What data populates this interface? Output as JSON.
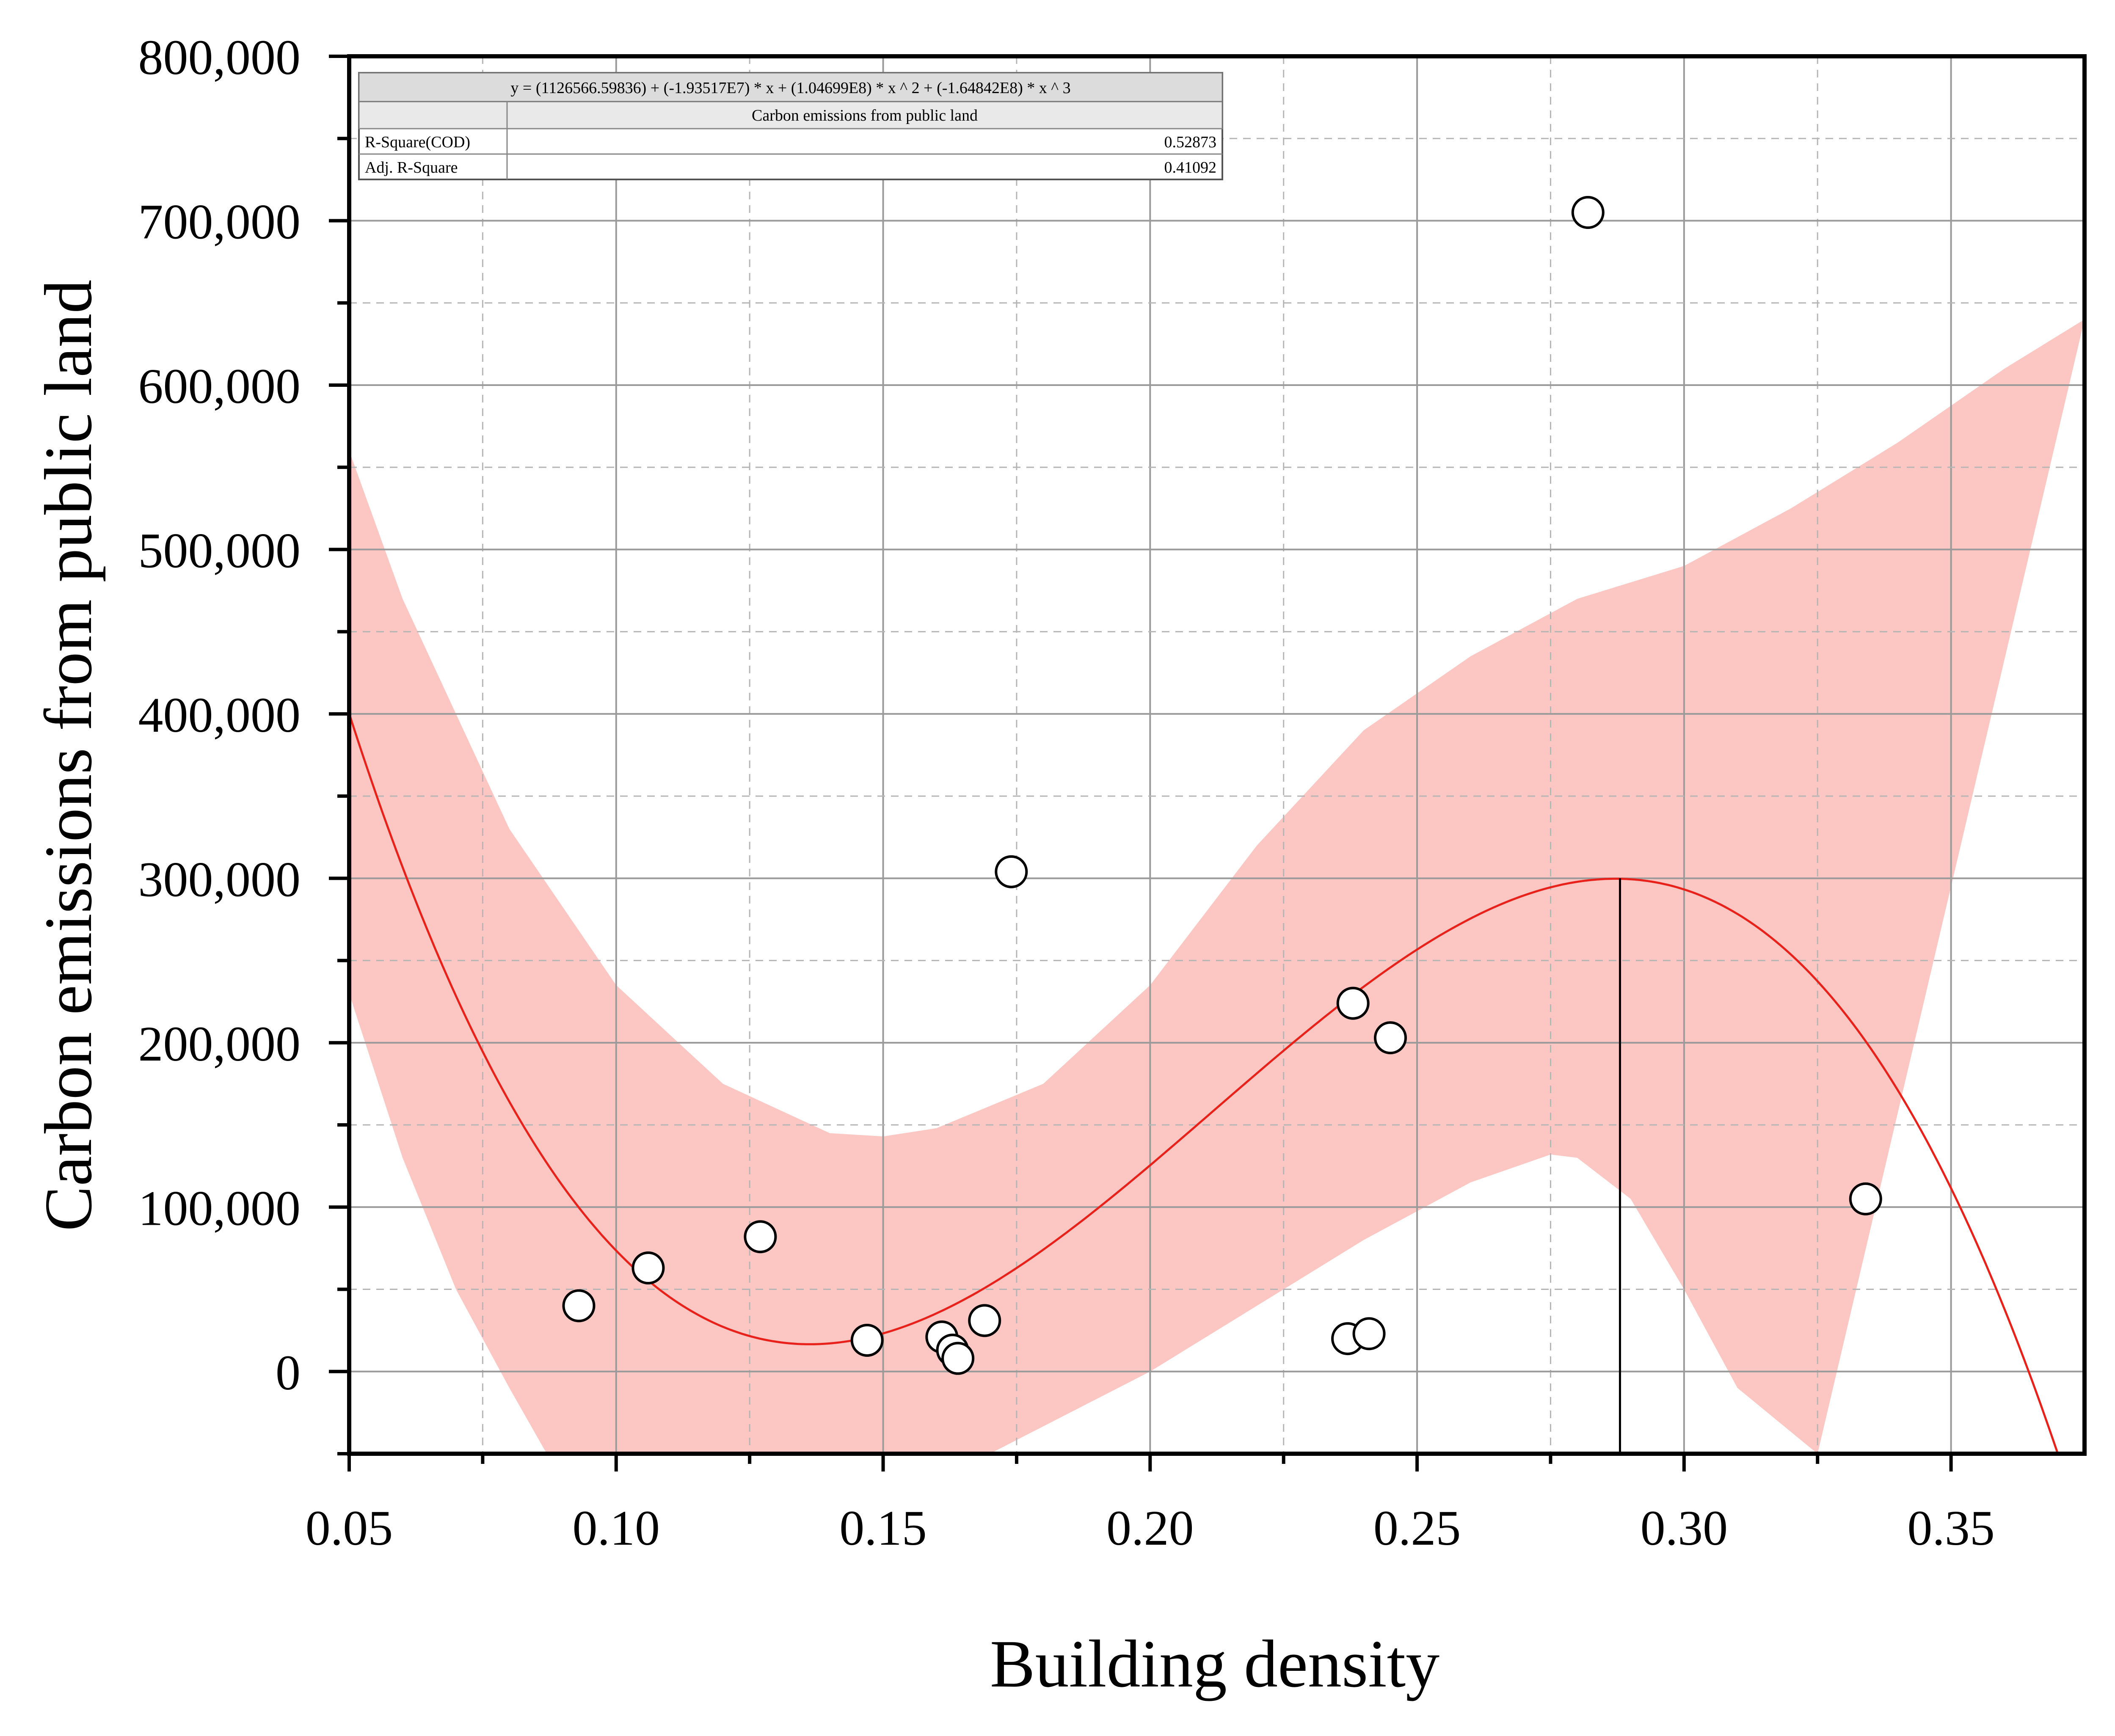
{
  "chart_data": {
    "type": "scatter",
    "title": "",
    "xlabel": "Building density",
    "ylabel": "Carbon emissions from public land",
    "xlim": [
      0.05,
      0.375
    ],
    "ylim": [
      -50000,
      800000
    ],
    "x_ticks": [
      0.05,
      0.1,
      0.15,
      0.2,
      0.25,
      0.3,
      0.35
    ],
    "x_tick_labels": [
      "0.05",
      "0.10",
      "0.15",
      "0.20",
      "0.25",
      "0.30",
      "0.35"
    ],
    "x_minor_ticks": [
      0.075,
      0.125,
      0.175,
      0.225,
      0.275,
      0.325
    ],
    "y_ticks": [
      0,
      100000,
      200000,
      300000,
      400000,
      500000,
      600000,
      700000,
      800000
    ],
    "y_tick_labels": [
      "0",
      "100,000",
      "200,000",
      "300,000",
      "400,000",
      "500,000",
      "600,000",
      "700,000",
      "800,000"
    ],
    "y_minor_ticks": [
      -50000,
      50000,
      150000,
      250000,
      350000,
      450000,
      550000,
      650000,
      750000
    ],
    "grid": true,
    "series": [
      {
        "name": "Carbon emissions from public land",
        "type": "scatter",
        "points": [
          {
            "x": 0.093,
            "y": 40000
          },
          {
            "x": 0.106,
            "y": 63000
          },
          {
            "x": 0.127,
            "y": 82000
          },
          {
            "x": 0.147,
            "y": 19000
          },
          {
            "x": 0.161,
            "y": 21000
          },
          {
            "x": 0.163,
            "y": 13000
          },
          {
            "x": 0.164,
            "y": 8000
          },
          {
            "x": 0.169,
            "y": 31000
          },
          {
            "x": 0.174,
            "y": 304000
          },
          {
            "x": 0.237,
            "y": 20000
          },
          {
            "x": 0.238,
            "y": 224000
          },
          {
            "x": 0.241,
            "y": 23000
          },
          {
            "x": 0.245,
            "y": 203000
          },
          {
            "x": 0.282,
            "y": 705000
          },
          {
            "x": 0.334,
            "y": 105000
          }
        ]
      },
      {
        "name": "Polynomial fit",
        "type": "line",
        "color": "#e8221b",
        "coefficients": [
          1126566.59836,
          -19351700,
          104699000,
          -164842000
        ],
        "x_range": [
          0.05,
          0.37
        ]
      }
    ],
    "confidence_band": {
      "color": "#fcc7c2",
      "upper": [
        [
          0.05,
          560000
        ],
        [
          0.06,
          470000
        ],
        [
          0.08,
          330000
        ],
        [
          0.1,
          235000
        ],
        [
          0.12,
          175000
        ],
        [
          0.14,
          145000
        ],
        [
          0.15,
          143000
        ],
        [
          0.16,
          148000
        ],
        [
          0.18,
          175000
        ],
        [
          0.2,
          235000
        ],
        [
          0.22,
          320000
        ],
        [
          0.24,
          390000
        ],
        [
          0.26,
          435000
        ],
        [
          0.28,
          470000
        ],
        [
          0.3,
          490000
        ],
        [
          0.32,
          525000
        ],
        [
          0.34,
          565000
        ],
        [
          0.36,
          610000
        ],
        [
          0.375,
          640000
        ]
      ],
      "lower": [
        [
          0.05,
          230000
        ],
        [
          0.06,
          130000
        ],
        [
          0.07,
          50000
        ],
        [
          0.08,
          -10000
        ],
        [
          0.087,
          -50000
        ],
        [
          0.17,
          -50000
        ],
        [
          0.2,
          0
        ],
        [
          0.22,
          40000
        ],
        [
          0.24,
          80000
        ],
        [
          0.26,
          115000
        ],
        [
          0.275,
          132000
        ],
        [
          0.28,
          130000
        ],
        [
          0.29,
          105000
        ],
        [
          0.3,
          50000
        ],
        [
          0.31,
          -10000
        ],
        [
          0.325,
          -50000
        ]
      ]
    },
    "vertical_marker": {
      "x": 0.288,
      "y_from": -50000,
      "y_to": 300000
    },
    "stats_table": {
      "equation": "y = (1126566.59836) + (-1.93517E7) * x + (1.04699E8) * x ^ 2 + (-1.64842E8) * x ^ 3",
      "header": "Carbon emissions from public land",
      "rows": [
        {
          "label": "R-Square(COD)",
          "value": "0.52873"
        },
        {
          "label": "Adj. R-Square",
          "value": "0.41092"
        }
      ]
    }
  }
}
